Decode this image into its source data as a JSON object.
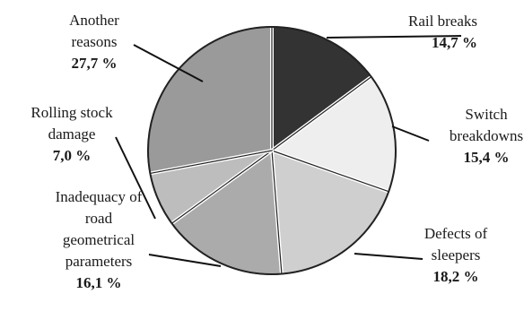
{
  "chart_data": {
    "type": "pie",
    "slices": [
      {
        "label_lines": [
          "Rail breaks"
        ],
        "value_text": "14,7 %",
        "value": 14.7,
        "color": "#333333"
      },
      {
        "label_lines": [
          "Switch",
          "breakdowns"
        ],
        "value_text": "15,4 %",
        "value": 15.4,
        "color": "#eeeeee"
      },
      {
        "label_lines": [
          "Defects of",
          "sleepers"
        ],
        "value_text": "18,2 %",
        "value": 18.2,
        "color": "#cfcfcf"
      },
      {
        "label_lines": [
          "Inadequacy of",
          "road",
          "geometrical",
          "parameters"
        ],
        "value_text": "16,1 %",
        "value": 16.1,
        "color": "#ababab"
      },
      {
        "label_lines": [
          "Rolling stock",
          "damage"
        ],
        "value_text": "7,0 %",
        "value": 7.0,
        "color": "#bdbdbd"
      },
      {
        "label_lines": [
          "Another",
          "reasons"
        ],
        "value_text": "27,7 %",
        "value": 27.7,
        "color": "#9a9a9a"
      }
    ],
    "start": "12 o'clock",
    "direction": "clockwise",
    "legend": "none"
  }
}
